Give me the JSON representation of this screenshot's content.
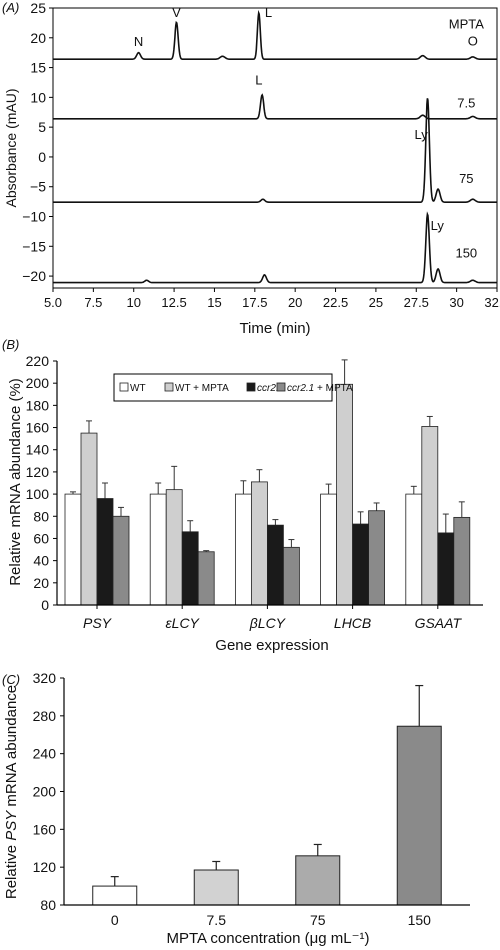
{
  "chart_data": [
    {
      "panel_label": "(A)",
      "type": "line",
      "xlabel": "Time (min)",
      "ylabel": "Absorbance (mAU)",
      "xlim": [
        5.0,
        32.5
      ],
      "ylim": [
        -22,
        25
      ],
      "x_ticks": [
        "5.0",
        "7.5",
        "10",
        "12.5",
        "15",
        "17.5",
        "20",
        "22.5",
        "25",
        "27.5",
        "30",
        "32.5"
      ],
      "x_tick_values": [
        5.0,
        7.5,
        10,
        12.5,
        15,
        17.5,
        20,
        22.5,
        25,
        27.5,
        30,
        32.5
      ],
      "y_ticks": [
        "25",
        "20",
        "15",
        "10",
        "5",
        "0",
        "−5",
        "−10",
        "−15",
        "−20"
      ],
      "y_tick_values": [
        25,
        20,
        15,
        10,
        5,
        0,
        -5,
        -10,
        -15,
        -20
      ],
      "series": [
        {
          "name": "MPTA",
          "baseline": 16.4,
          "peaks": [
            {
              "x": 10.3,
              "height": 1.1,
              "width": 0.12
            },
            {
              "x": 12.65,
              "height": 6.2,
              "width": 0.1
            },
            {
              "x": 15.5,
              "height": 0.5,
              "width": 0.15
            },
            {
              "x": 17.75,
              "height": 7.8,
              "width": 0.09
            },
            {
              "x": 27.9,
              "height": 0.6,
              "width": 0.15
            },
            {
              "x": 31.0,
              "height": 0.4,
              "width": 0.15
            }
          ],
          "annotations": [
            {
              "text": "N",
              "x": 10.3,
              "y": 18.6
            },
            {
              "text": "V",
              "x": 12.65,
              "y": 23.5
            },
            {
              "text": "L",
              "x": 18.35,
              "y": 23.5
            }
          ]
        },
        {
          "name": "7.5",
          "baseline": 6.4,
          "peaks": [
            {
              "x": 17.95,
              "height": 4.0,
              "width": 0.1
            },
            {
              "x": 27.9,
              "height": 0.6,
              "width": 0.15
            },
            {
              "x": 31.0,
              "height": 0.4,
              "width": 0.15
            }
          ],
          "annotations": [
            {
              "text": "L",
              "x": 17.75,
              "y": 12.2
            }
          ]
        },
        {
          "name": "75",
          "baseline": -7.6,
          "peaks": [
            {
              "x": 18.0,
              "height": 0.5,
              "width": 0.12
            },
            {
              "x": 28.2,
              "height": 17.5,
              "width": 0.11
            },
            {
              "x": 28.85,
              "height": 2.2,
              "width": 0.12
            },
            {
              "x": 31.0,
              "height": 0.5,
              "width": 0.15
            }
          ],
          "annotations": [
            {
              "text": "Ly",
              "x": 27.8,
              "y": 3.0
            }
          ]
        },
        {
          "name": "150",
          "baseline": -21.1,
          "peaks": [
            {
              "x": 10.8,
              "height": 0.4,
              "width": 0.12
            },
            {
              "x": 18.1,
              "height": 1.3,
              "width": 0.12
            },
            {
              "x": 28.2,
              "height": 11.5,
              "width": 0.11
            },
            {
              "x": 28.85,
              "height": 2.3,
              "width": 0.12
            },
            {
              "x": 31.0,
              "height": 0.4,
              "width": 0.15
            }
          ],
          "annotations": [
            {
              "text": "Ly",
              "x": 28.8,
              "y": -12.3
            }
          ]
        }
      ],
      "extra_labels": [
        {
          "text": "O",
          "x": 31.0,
          "y": 18.7
        }
      ]
    },
    {
      "panel_label": "(B)",
      "type": "bar",
      "xlabel": "Gene expression",
      "ylabel": "Relative mRNA abundance (%)",
      "ylim": [
        0,
        220
      ],
      "y_ticks": [
        "0",
        "20",
        "40",
        "60",
        "80",
        "100",
        "120",
        "140",
        "160",
        "180",
        "200",
        "220"
      ],
      "y_tick_values": [
        0,
        20,
        40,
        60,
        80,
        100,
        120,
        140,
        160,
        180,
        200,
        220
      ],
      "categories": [
        "PSY",
        "εLCY",
        "βLCY",
        "LHCB",
        "GSAAT"
      ],
      "legend_position": "top",
      "series": [
        {
          "name": "WT",
          "color": "#ffffff",
          "values": [
            100,
            100,
            100,
            100,
            100
          ],
          "errors": [
            2,
            10,
            12,
            9,
            7
          ]
        },
        {
          "name": "WT + MPTA",
          "color": "#cfcfcf",
          "values": [
            155,
            104,
            111,
            199,
            161
          ],
          "errors": [
            11,
            21,
            11,
            22,
            9
          ]
        },
        {
          "name": "ccr2.1",
          "color": "#1a1a1a",
          "values": [
            96,
            66,
            72,
            73,
            65
          ],
          "errors": [
            14,
            10,
            5,
            11,
            17
          ]
        },
        {
          "name": "ccr2.1 + MPTA",
          "color": "#8a8a8a",
          "values": [
            80,
            48,
            52,
            85,
            79
          ],
          "errors": [
            8,
            1,
            7,
            7,
            14
          ]
        }
      ]
    },
    {
      "panel_label": "(C)",
      "type": "bar",
      "xlabel": "MPTA concentration (μg mL⁻¹)",
      "ylabel_parts": [
        "Relative ",
        "PSY",
        " mRNA abundance"
      ],
      "ylim": [
        80,
        320
      ],
      "y_ticks": [
        "80",
        "120",
        "160",
        "200",
        "240",
        "280",
        "320"
      ],
      "y_tick_values": [
        80,
        120,
        160,
        200,
        240,
        280,
        320
      ],
      "categories": [
        "0",
        "7.5",
        "75",
        "150"
      ],
      "values": [
        100,
        117,
        132,
        269
      ],
      "errors": [
        10,
        9,
        12,
        43
      ],
      "colors": [
        "#ffffff",
        "#d2d2d2",
        "#ababab",
        "#8a8a8a"
      ]
    }
  ]
}
